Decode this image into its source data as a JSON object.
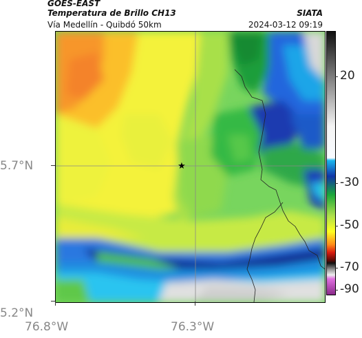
{
  "header": {
    "product": "GOES-EAST",
    "title": "Temperatura de Brillo CH13",
    "source": "SIATA",
    "route": "Vía Medellín - Quibdó 50km",
    "datetime": "2024-03-12 09:19"
  },
  "map": {
    "lat_labels": [
      "5.7°N",
      "5.2°N"
    ],
    "lon_labels": [
      "76.8°W",
      "76.3°W"
    ],
    "marker_symbol": "★",
    "marker_name": "star-marker"
  },
  "colorbar": {
    "labels": [
      "20",
      "-30",
      "-50",
      "-70",
      "-90"
    ],
    "colors": [
      "#000000",
      "#ffffff",
      "#00ffff",
      "#0000aa",
      "#00cc00",
      "#ffff00",
      "#ff6600",
      "#cc0000",
      "#ffffff",
      "#cc66cc"
    ]
  }
}
